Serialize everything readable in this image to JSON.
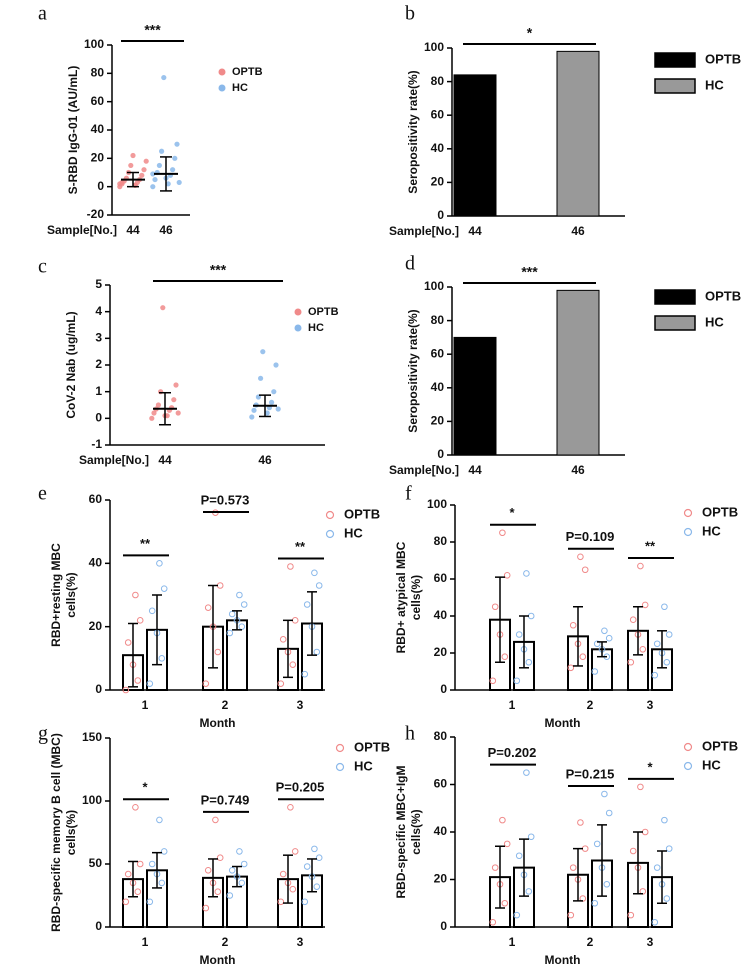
{
  "chart_data": [
    {
      "type": "dot",
      "panel": "a",
      "ylabel": [
        "S-RBD IgG-01  (AU/mL)"
      ],
      "xlabel": "Sample[No.]",
      "categories": [
        "44",
        "46"
      ],
      "ylim": [
        -20,
        100
      ],
      "yticks": [
        -20,
        0,
        20,
        40,
        60,
        80,
        100
      ],
      "annotation": "***",
      "series": [
        {
          "name": "OPTB",
          "color": "#f08a8a",
          "mean": 5,
          "sd": 5,
          "points": [
            0,
            1,
            2,
            3,
            4,
            5,
            6,
            8,
            10,
            12,
            15,
            18,
            22,
            2,
            1,
            3
          ]
        },
        {
          "name": "HC",
          "color": "#8ab8ea",
          "mean": 9,
          "sd": 12,
          "points": [
            0,
            2,
            5,
            8,
            10,
            12,
            15,
            20,
            25,
            30,
            77,
            3,
            6,
            9
          ]
        }
      ]
    },
    {
      "type": "bar",
      "panel": "b",
      "ylabel": [
        "Seropositivity rate(%)"
      ],
      "xlabel": "Sample[No.]",
      "categories": [
        "44",
        "46"
      ],
      "values": [
        84,
        98
      ],
      "legend": [
        "OPTB",
        "HC"
      ],
      "colors": [
        "#000000",
        "#999999"
      ],
      "ylim": [
        0,
        100
      ],
      "yticks": [
        0,
        20,
        40,
        60,
        80,
        100
      ],
      "annotation": "*"
    },
    {
      "type": "dot",
      "panel": "c",
      "ylabel": [
        "CoV-2 Nab  (ug/mL)"
      ],
      "xlabel": "Sample[No.]",
      "categories": [
        "44",
        "46"
      ],
      "ylim": [
        -1,
        5
      ],
      "yticks": [
        -1,
        0,
        1,
        2,
        3,
        4,
        5
      ],
      "annotation": "***",
      "series": [
        {
          "name": "OPTB",
          "color": "#f08a8a",
          "mean": 0.36,
          "sd": 0.6,
          "points": [
            0,
            0.1,
            0.2,
            0.3,
            0.35,
            0.4,
            0.5,
            0.7,
            1.0,
            1.25,
            4.15,
            0.2,
            0.1
          ]
        },
        {
          "name": "HC",
          "color": "#8ab8ea",
          "mean": 0.47,
          "sd": 0.4,
          "points": [
            0.05,
            0.2,
            0.3,
            0.4,
            0.5,
            0.6,
            0.8,
            1.0,
            1.5,
            2.0,
            2.5,
            0.35
          ]
        }
      ]
    },
    {
      "type": "bar",
      "panel": "d",
      "ylabel": [
        "Seropositivity rate(%)"
      ],
      "xlabel": "Sample[No.]",
      "categories": [
        "44",
        "46"
      ],
      "values": [
        70,
        98
      ],
      "legend": [
        "OPTB",
        "HC"
      ],
      "colors": [
        "#000000",
        "#999999"
      ],
      "ylim": [
        0,
        100
      ],
      "yticks": [
        0,
        20,
        40,
        60,
        80,
        100
      ],
      "annotation": "***"
    },
    {
      "type": "grouped",
      "panel": "e",
      "ylabel": [
        "RBD+resting MBC",
        "cells(%)"
      ],
      "xlabel": "Month",
      "categories": [
        "1",
        "2",
        "3"
      ],
      "ylim": [
        0,
        60
      ],
      "yticks": [
        0,
        20,
        40,
        60
      ],
      "annotations": [
        "**",
        "P=0.573",
        "**"
      ],
      "series": [
        {
          "name": "OPTB",
          "color": "#f08a8a",
          "values": [
            11,
            20,
            13
          ],
          "errors": [
            10,
            13,
            9
          ],
          "points": [
            [
              0,
              3,
              8,
              15,
              22,
              30
            ],
            [
              2,
              12,
              20,
              26,
              33,
              56
            ],
            [
              2,
              8,
              12,
              16,
              22,
              39
            ]
          ]
        },
        {
          "name": "HC",
          "color": "#8ab8ea",
          "values": [
            19,
            22,
            21
          ],
          "errors": [
            11,
            3,
            10
          ],
          "points": [
            [
              2,
              10,
              18,
              25,
              32,
              40
            ],
            [
              18,
              20,
              22,
              24,
              27,
              30
            ],
            [
              5,
              12,
              20,
              27,
              33,
              37
            ]
          ]
        }
      ]
    },
    {
      "type": "grouped",
      "panel": "f",
      "ylabel": [
        "RBD+ atypical MBC",
        "cells(%)"
      ],
      "xlabel": "Month",
      "categories": [
        "1",
        "2",
        "3"
      ],
      "ylim": [
        0,
        100
      ],
      "yticks": [
        0,
        20,
        40,
        60,
        80,
        100
      ],
      "annotations": [
        "*",
        "P=0.109",
        "**"
      ],
      "series": [
        {
          "name": "OPTB",
          "color": "#f08a8a",
          "values": [
            38,
            29,
            32
          ],
          "errors": [
            23,
            16,
            13
          ],
          "points": [
            [
              5,
              18,
              30,
              45,
              62,
              85
            ],
            [
              12,
              18,
              25,
              35,
              65,
              72
            ],
            [
              15,
              22,
              30,
              38,
              46,
              67
            ]
          ]
        },
        {
          "name": "HC",
          "color": "#8ab8ea",
          "values": [
            26,
            22,
            22
          ],
          "errors": [
            14,
            4,
            10
          ],
          "points": [
            [
              5,
              15,
              22,
              30,
              40,
              63
            ],
            [
              10,
              18,
              22,
              25,
              28,
              32
            ],
            [
              8,
              15,
              20,
              25,
              30,
              45
            ]
          ]
        }
      ]
    },
    {
      "type": "grouped",
      "panel": "g",
      "ylabel": [
        "RBD-specific memory B cell (MBC)",
        "cells(%)"
      ],
      "xlabel": "Month",
      "categories": [
        "1",
        "2",
        "3"
      ],
      "ylim": [
        0,
        150
      ],
      "yticks": [
        0,
        50,
        100,
        150
      ],
      "annotations": [
        "*",
        "P=0.749",
        "P=0.205"
      ],
      "series": [
        {
          "name": "OPTB",
          "color": "#f08a8a",
          "values": [
            38,
            39,
            38
          ],
          "errors": [
            14,
            15,
            19
          ],
          "points": [
            [
              20,
              28,
              35,
              42,
              50,
              95
            ],
            [
              15,
              28,
              35,
              45,
              55,
              85
            ],
            [
              20,
              30,
              35,
              42,
              60,
              95
            ]
          ]
        },
        {
          "name": "HC",
          "color": "#8ab8ea",
          "values": [
            45,
            40,
            41
          ],
          "errors": [
            14,
            8,
            13
          ],
          "points": [
            [
              20,
              35,
              42,
              50,
              60,
              85
            ],
            [
              25,
              35,
              40,
              45,
              50,
              60
            ],
            [
              20,
              32,
              40,
              48,
              55,
              62
            ]
          ]
        }
      ]
    },
    {
      "type": "grouped",
      "panel": "h",
      "ylabel": [
        "RBD-specific MBC+IgM",
        "cells(%)"
      ],
      "xlabel": "Month",
      "categories": [
        "1",
        "2",
        "3"
      ],
      "ylim": [
        0,
        80
      ],
      "yticks": [
        0,
        20,
        40,
        60,
        80
      ],
      "annotations": [
        "P=0.202",
        "P=0.215",
        "*"
      ],
      "series": [
        {
          "name": "OPTB",
          "color": "#f08a8a",
          "values": [
            21,
            22,
            27
          ],
          "errors": [
            13,
            11,
            13
          ],
          "points": [
            [
              2,
              10,
              18,
              25,
              35,
              45
            ],
            [
              5,
              12,
              20,
              25,
              33,
              44
            ],
            [
              5,
              15,
              25,
              32,
              40,
              59
            ]
          ]
        },
        {
          "name": "HC",
          "color": "#8ab8ea",
          "values": [
            25,
            28,
            21
          ],
          "errors": [
            12,
            15,
            11
          ],
          "points": [
            [
              5,
              15,
              22,
              30,
              38,
              65
            ],
            [
              10,
              18,
              25,
              35,
              48,
              56
            ],
            [
              2,
              12,
              18,
              25,
              33,
              45
            ]
          ]
        }
      ]
    }
  ]
}
